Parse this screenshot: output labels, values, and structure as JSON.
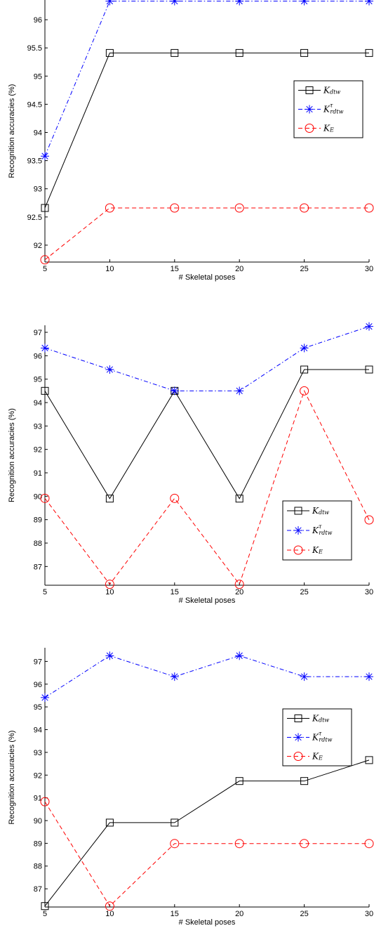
{
  "chart_data": [
    {
      "type": "line",
      "xlabel": "# Skeletal poses",
      "ylabel": "Recognition accuracies (%)",
      "x": [
        5,
        10,
        15,
        20,
        25,
        30
      ],
      "xticks": [
        "5",
        "10",
        "15",
        "20",
        "25",
        "30"
      ],
      "yticks": [
        "92",
        "92.5",
        "93",
        "93.5",
        "94",
        "94.5",
        "95",
        "95.5",
        "96"
      ],
      "xlim": [
        5,
        30
      ],
      "ylim": [
        91.7,
        96.35
      ],
      "grid": false,
      "legend_position": "right",
      "series": [
        {
          "name": "K_dtw",
          "color": "#000000",
          "dash": "solid",
          "marker": "square",
          "values": [
            92.66,
            95.41,
            95.41,
            95.41,
            95.41,
            95.41
          ]
        },
        {
          "name": "K^τ_rdtw",
          "color": "#0000ff",
          "dash": "dashdot",
          "marker": "asterisk",
          "values": [
            93.58,
            96.33,
            96.33,
            96.33,
            96.33,
            96.33
          ]
        },
        {
          "name": "K_E",
          "color": "#ff0000",
          "dash": "dashed",
          "marker": "circle",
          "values": [
            91.74,
            92.66,
            92.66,
            92.66,
            92.66,
            92.66
          ]
        }
      ]
    },
    {
      "type": "line",
      "xlabel": "# Skeletal poses",
      "ylabel": "Recognition accuracies (%)",
      "x": [
        5,
        10,
        15,
        20,
        25,
        30
      ],
      "xticks": [
        "5",
        "10",
        "15",
        "20",
        "25",
        "30"
      ],
      "yticks": [
        "87",
        "88",
        "89",
        "90",
        "91",
        "92",
        "93",
        "94",
        "95",
        "96",
        "97"
      ],
      "xlim": [
        5,
        30
      ],
      "ylim": [
        86.2,
        97.3
      ],
      "grid": false,
      "legend_position": "bottom-right",
      "series": [
        {
          "name": "K_dtw",
          "color": "#000000",
          "dash": "solid",
          "marker": "square",
          "values": [
            94.5,
            89.9,
            94.5,
            89.9,
            95.41,
            95.41
          ]
        },
        {
          "name": "K^τ_rdtw",
          "color": "#0000ff",
          "dash": "dashdot",
          "marker": "asterisk",
          "values": [
            96.33,
            95.41,
            94.5,
            94.5,
            96.33,
            97.25
          ]
        },
        {
          "name": "K_E",
          "color": "#ff0000",
          "dash": "dashed",
          "marker": "circle",
          "values": [
            89.91,
            86.24,
            89.91,
            86.24,
            94.5,
            88.99
          ]
        }
      ]
    },
    {
      "type": "line",
      "xlabel": "# Skeletal poses",
      "ylabel": "Recognition accuracies (%)",
      "x": [
        5,
        10,
        15,
        20,
        25,
        30
      ],
      "xticks": [
        "5",
        "10",
        "15",
        "20",
        "25",
        "30"
      ],
      "yticks": [
        "87",
        "88",
        "89",
        "90",
        "91",
        "92",
        "93",
        "94",
        "95",
        "96",
        "97"
      ],
      "xlim": [
        5,
        30
      ],
      "ylim": [
        86.2,
        97.6
      ],
      "grid": false,
      "legend_position": "right",
      "series": [
        {
          "name": "K_dtw",
          "color": "#000000",
          "dash": "solid",
          "marker": "square",
          "values": [
            86.24,
            89.91,
            89.91,
            91.74,
            91.74,
            92.66
          ]
        },
        {
          "name": "K^τ_rdtw",
          "color": "#0000ff",
          "dash": "dashdot",
          "marker": "asterisk",
          "values": [
            95.41,
            97.25,
            96.33,
            97.25,
            96.33,
            96.33
          ]
        },
        {
          "name": "K_E",
          "color": "#ff0000",
          "dash": "dashed",
          "marker": "circle",
          "values": [
            90.83,
            86.24,
            88.99,
            88.99,
            88.99,
            88.99
          ]
        }
      ]
    }
  ]
}
